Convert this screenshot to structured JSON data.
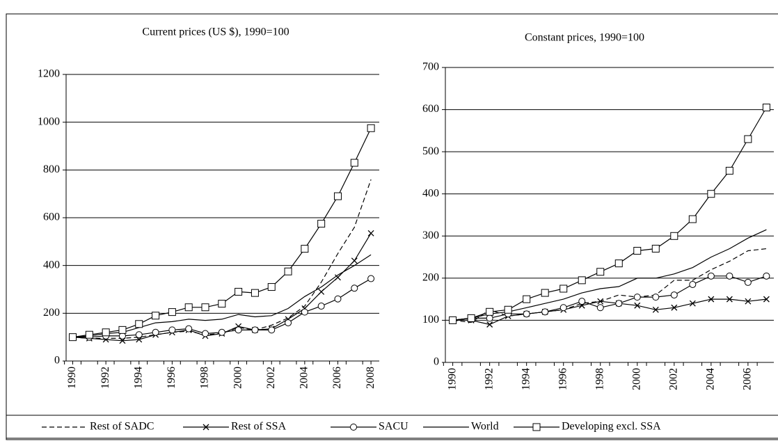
{
  "chart_data": [
    {
      "type": "line",
      "title": "Current prices (US $), 1990=100",
      "x": [
        1990,
        1991,
        1992,
        1993,
        1994,
        1995,
        1996,
        1997,
        1998,
        1999,
        2000,
        2001,
        2002,
        2003,
        2004,
        2005,
        2006,
        2007,
        2008
      ],
      "xlim": [
        1989.6,
        2008.5
      ],
      "xticks": [
        1990,
        1992,
        1994,
        1996,
        1998,
        2000,
        2002,
        2004,
        2006,
        2008
      ],
      "ylim": [
        0,
        1200
      ],
      "yticks": [
        0,
        200,
        400,
        600,
        800,
        1000,
        1200
      ],
      "grid": true,
      "series": [
        {
          "name": "Rest of SADC",
          "color": "#000000",
          "dash": true,
          "marker": "none",
          "values": [
            100,
            95,
            95,
            95,
            100,
            110,
            120,
            125,
            110,
            115,
            140,
            130,
            150,
            180,
            230,
            330,
            450,
            560,
            760
          ]
        },
        {
          "name": "Rest of SSA",
          "color": "#000000",
          "dash": false,
          "marker": "x",
          "values": [
            100,
            95,
            90,
            85,
            90,
            110,
            120,
            130,
            105,
            115,
            145,
            130,
            135,
            175,
            220,
            290,
            350,
            420,
            535
          ]
        },
        {
          "name": "SACU",
          "color": "#000000",
          "dash": false,
          "marker": "circle",
          "values": [
            100,
            100,
            105,
            105,
            110,
            120,
            130,
            135,
            115,
            120,
            130,
            130,
            130,
            160,
            205,
            230,
            260,
            305,
            345
          ]
        },
        {
          "name": "World",
          "color": "#000000",
          "dash": false,
          "marker": "none",
          "values": [
            100,
            105,
            115,
            120,
            140,
            160,
            165,
            175,
            170,
            175,
            195,
            185,
            190,
            220,
            270,
            310,
            360,
            400,
            445
          ]
        },
        {
          "name": "Developing excl. SSA",
          "color": "#000000",
          "dash": false,
          "marker": "square",
          "values": [
            100,
            110,
            120,
            130,
            155,
            190,
            205,
            225,
            225,
            240,
            290,
            285,
            310,
            375,
            470,
            575,
            690,
            830,
            975
          ]
        }
      ]
    },
    {
      "type": "line",
      "title": "Constant prices, 1990=100",
      "x": [
        1990,
        1991,
        1992,
        1993,
        1994,
        1995,
        1996,
        1997,
        1998,
        1999,
        2000,
        2001,
        2002,
        2003,
        2004,
        2005,
        2006,
        2007
      ],
      "xlim": [
        1989.6,
        2007.4
      ],
      "xticks": [
        1990,
        1992,
        1994,
        1996,
        1998,
        2000,
        2002,
        2004,
        2006
      ],
      "ylim": [
        0,
        700
      ],
      "yticks": [
        0,
        100,
        200,
        300,
        400,
        500,
        600,
        700
      ],
      "grid": true,
      "series": [
        {
          "color": "#000000",
          "dash": true,
          "marker": "none",
          "values": [
            100,
            95,
            125,
            110,
            115,
            120,
            125,
            140,
            145,
            160,
            155,
            160,
            195,
            195,
            220,
            240,
            265,
            270
          ]
        },
        {
          "color": "#000000",
          "dash": false,
          "marker": "x",
          "values": [
            100,
            100,
            90,
            110,
            115,
            120,
            125,
            135,
            145,
            140,
            135,
            125,
            130,
            140,
            150,
            150,
            145,
            150
          ]
        },
        {
          "color": "#000000",
          "dash": false,
          "marker": "circle",
          "values": [
            100,
            105,
            105,
            115,
            115,
            120,
            130,
            145,
            130,
            140,
            155,
            155,
            160,
            185,
            205,
            205,
            190,
            205
          ]
        },
        {
          "color": "#000000",
          "dash": false,
          "marker": "none",
          "values": [
            100,
            105,
            115,
            120,
            130,
            140,
            150,
            165,
            175,
            180,
            200,
            200,
            210,
            225,
            250,
            270,
            295,
            315
          ]
        },
        {
          "color": "#000000",
          "dash": false,
          "marker": "square",
          "values": [
            100,
            105,
            120,
            125,
            150,
            165,
            175,
            195,
            215,
            235,
            265,
            270,
            300,
            340,
            400,
            455,
            530,
            605
          ]
        }
      ]
    }
  ]
}
